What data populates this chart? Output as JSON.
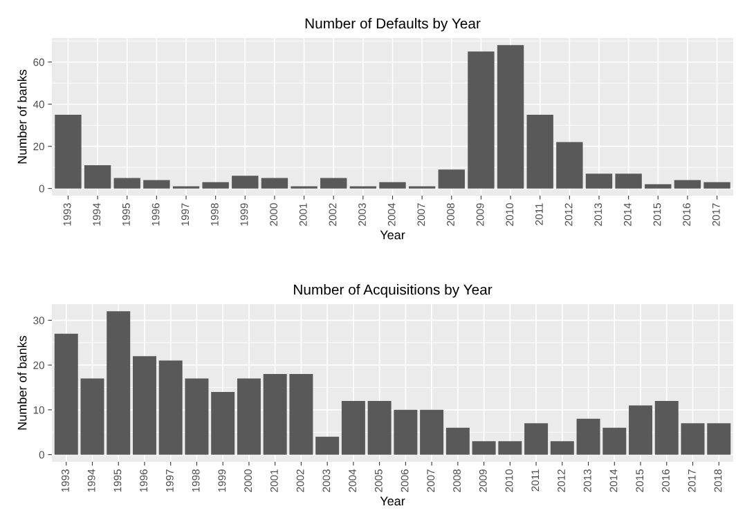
{
  "chart_data": [
    {
      "type": "bar",
      "title": "Number of Defaults by Year",
      "xlabel": "Year",
      "ylabel": "Number of banks",
      "categories": [
        "1993",
        "1994",
        "1995",
        "1996",
        "1997",
        "1998",
        "1999",
        "2000",
        "2001",
        "2002",
        "2003",
        "2004",
        "2007",
        "2008",
        "2009",
        "2010",
        "2011",
        "2012",
        "2013",
        "2014",
        "2015",
        "2016",
        "2017"
      ],
      "values": [
        35,
        11,
        5,
        4,
        1,
        3,
        6,
        5,
        1,
        5,
        1,
        3,
        1,
        9,
        65,
        68,
        35,
        22,
        7,
        7,
        2,
        4,
        3
      ],
      "color": "#595959",
      "ylim": [
        -3.4,
        71.4
      ],
      "yticks": [
        0,
        20,
        40,
        60
      ],
      "grid": true,
      "legend": false
    },
    {
      "type": "bar",
      "title": "Number of Acquisitions by Year",
      "xlabel": "Year",
      "ylabel": "Number of banks",
      "categories": [
        "1993",
        "1994",
        "1995",
        "1996",
        "1997",
        "1998",
        "1999",
        "2000",
        "2001",
        "2002",
        "2003",
        "2004",
        "2005",
        "2006",
        "2007",
        "2008",
        "2009",
        "2010",
        "2011",
        "2012",
        "2013",
        "2014",
        "2015",
        "2016",
        "2017",
        "2018"
      ],
      "values": [
        27,
        17,
        32,
        22,
        21,
        17,
        14,
        17,
        18,
        18,
        4,
        12,
        12,
        10,
        10,
        6,
        3,
        3,
        7,
        3,
        8,
        6,
        11,
        12,
        7,
        7
      ],
      "color": "#595959",
      "ylim": [
        -1.6,
        33.6
      ],
      "yticks": [
        0,
        10,
        20,
        30
      ],
      "grid": true,
      "legend": false
    }
  ]
}
